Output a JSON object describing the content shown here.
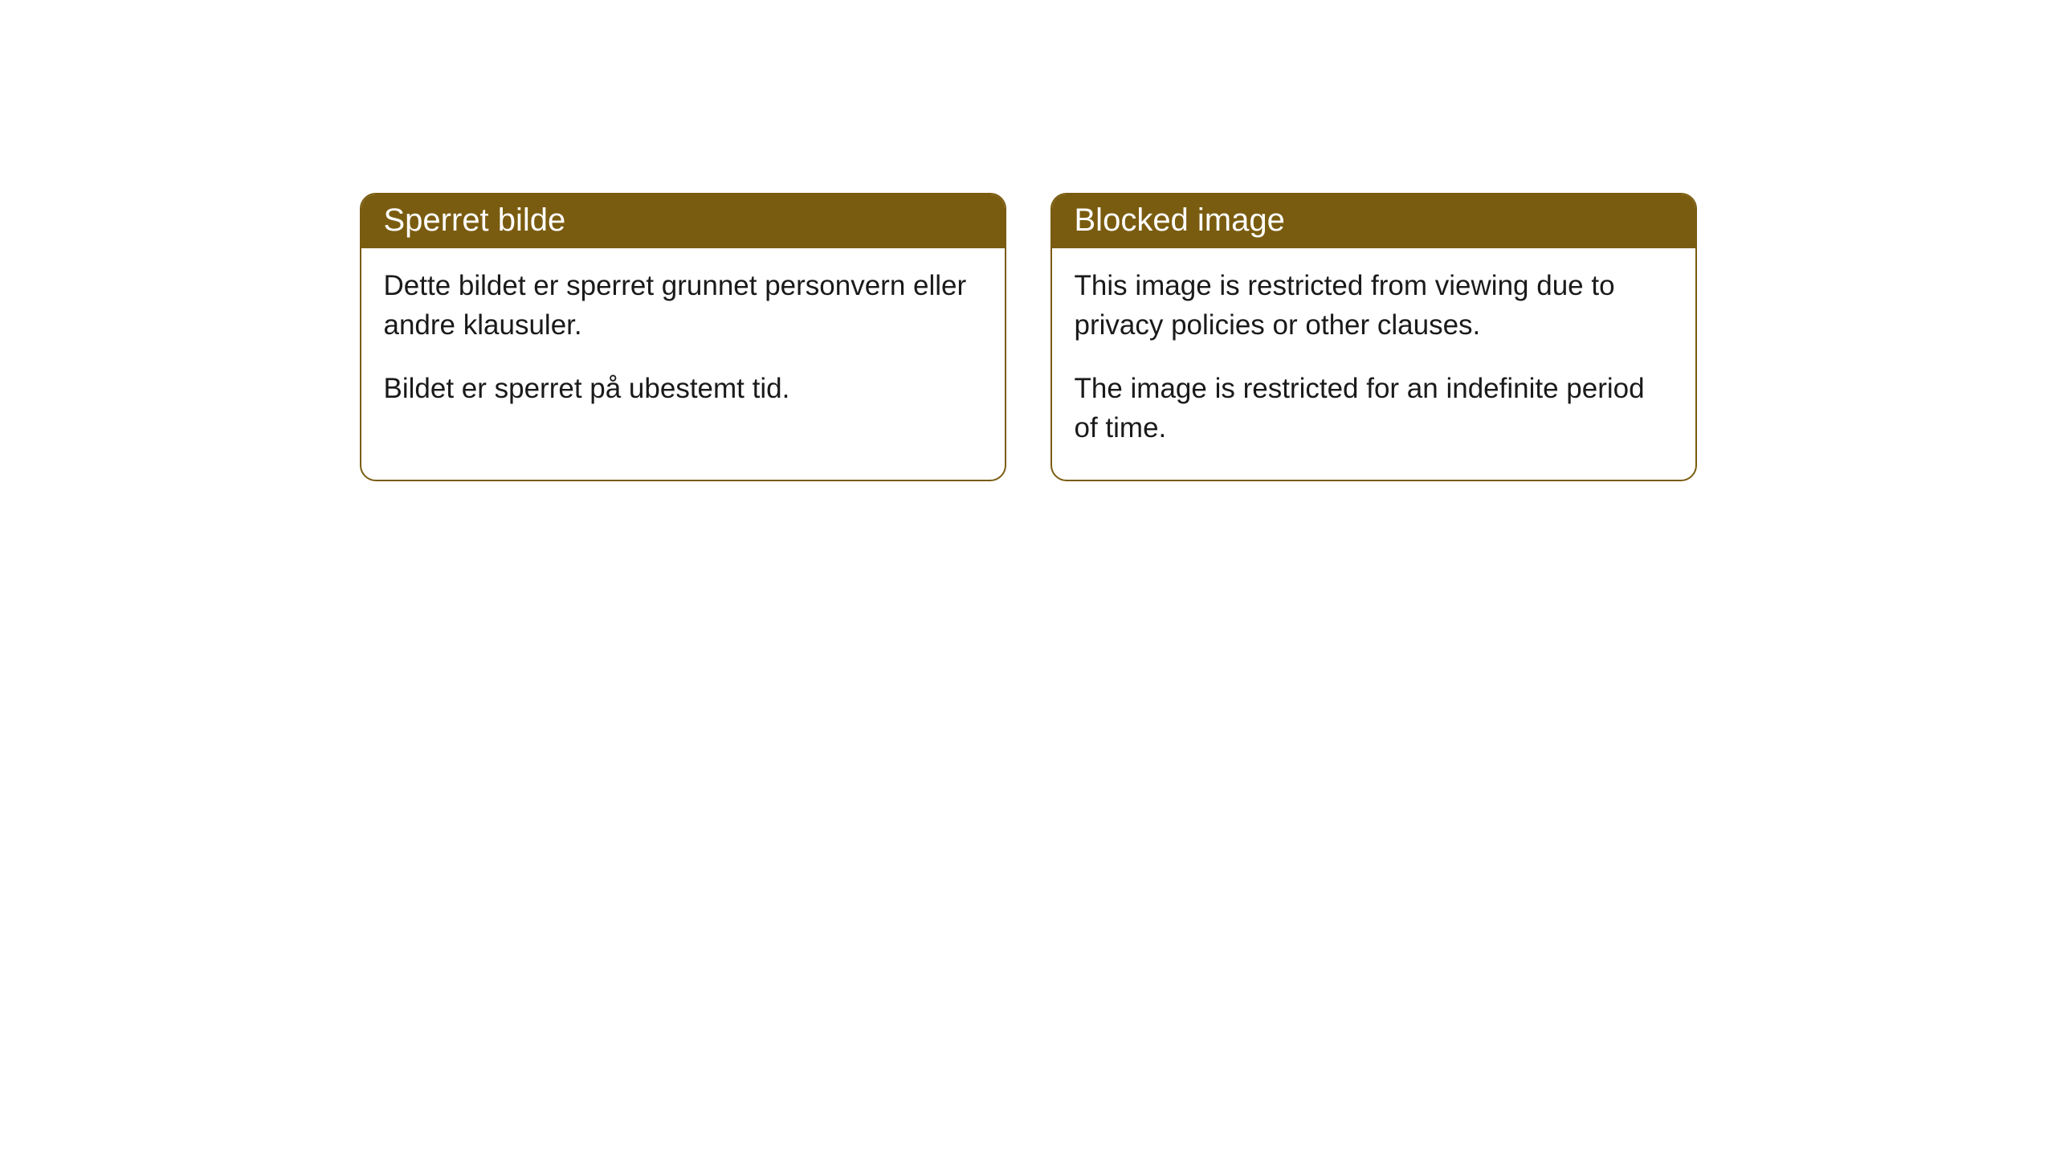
{
  "cards": [
    {
      "title": "Sperret bilde",
      "paragraph1": "Dette bildet er sperret grunnet personvern eller andre klausuler.",
      "paragraph2": "Bildet er sperret på ubestemt tid."
    },
    {
      "title": "Blocked image",
      "paragraph1": "This image is restricted from viewing due to privacy policies or other clauses.",
      "paragraph2": "The image is restricted for an indefinite period of time."
    }
  ],
  "style": {
    "header_bg_color": "#7a5c10",
    "header_text_color": "#ffffff",
    "border_color": "#7a5c10",
    "body_bg_color": "#ffffff",
    "body_text_color": "#1a1a1a",
    "border_radius": "20px",
    "title_fontsize": 40,
    "body_fontsize": 35
  }
}
